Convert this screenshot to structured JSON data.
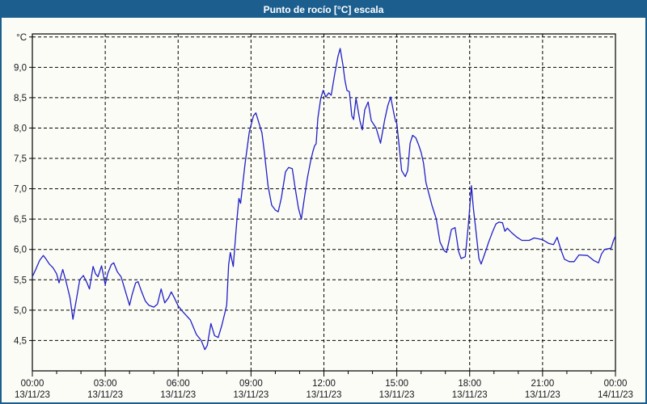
{
  "window": {
    "title": "Punto de rocío [°C] escala"
  },
  "colors": {
    "titlebar": "#1c5f8f",
    "border": "#1c5f8f",
    "background": "#fcfcf6",
    "grid": "#000000",
    "frame": "#000000",
    "line": "#2020c8",
    "tick_label": "#16161e"
  },
  "chart_data": {
    "type": "line",
    "title": "Punto de rocío [°C] escala",
    "grid": "dashed",
    "legend_position": "none",
    "y_axis": {
      "unit_label": "°C",
      "min": 4.0,
      "max": 9.55,
      "tick_step": 0.5,
      "ticks": [
        {
          "value": 4.5,
          "label": "4,5"
        },
        {
          "value": 5.0,
          "label": "5,0"
        },
        {
          "value": 5.5,
          "label": "5,5"
        },
        {
          "value": 6.0,
          "label": "6,0"
        },
        {
          "value": 6.5,
          "label": "6,5"
        },
        {
          "value": 7.0,
          "label": "7,0"
        },
        {
          "value": 7.5,
          "label": "7,5"
        },
        {
          "value": 8.0,
          "label": "8,0"
        },
        {
          "value": 8.5,
          "label": "8,5"
        },
        {
          "value": 9.0,
          "label": "9,0"
        },
        {
          "value": 9.5,
          "label": "°C"
        }
      ]
    },
    "x_axis": {
      "min_hours": 0,
      "max_hours": 24,
      "minor_tick_hours": 1,
      "major_tick_hours": 3,
      "major_labels": [
        {
          "hour": 0,
          "time": "00:00",
          "date": "13/11/23"
        },
        {
          "hour": 3,
          "time": "03:00",
          "date": "13/11/23"
        },
        {
          "hour": 6,
          "time": "06:00",
          "date": "13/11/23"
        },
        {
          "hour": 9,
          "time": "09:00",
          "date": "13/11/23"
        },
        {
          "hour": 12,
          "time": "12:00",
          "date": "13/11/23"
        },
        {
          "hour": 15,
          "time": "15:00",
          "date": "13/11/23"
        },
        {
          "hour": 18,
          "time": "18:00",
          "date": "13/11/23"
        },
        {
          "hour": 21,
          "time": "21:00",
          "date": "13/11/23"
        },
        {
          "hour": 24,
          "time": "00:00",
          "date": "14/11/23"
        }
      ]
    },
    "series": [
      {
        "name": "Punto de rocío",
        "color": "#2020c8",
        "points": [
          [
            0.0,
            5.55
          ],
          [
            0.15,
            5.68
          ],
          [
            0.3,
            5.82
          ],
          [
            0.45,
            5.9
          ],
          [
            0.55,
            5.85
          ],
          [
            0.7,
            5.76
          ],
          [
            0.85,
            5.7
          ],
          [
            1.0,
            5.6
          ],
          [
            1.1,
            5.45
          ],
          [
            1.25,
            5.67
          ],
          [
            1.4,
            5.45
          ],
          [
            1.55,
            5.2
          ],
          [
            1.67,
            4.85
          ],
          [
            1.8,
            5.15
          ],
          [
            1.95,
            5.5
          ],
          [
            2.1,
            5.57
          ],
          [
            2.25,
            5.45
          ],
          [
            2.35,
            5.35
          ],
          [
            2.5,
            5.72
          ],
          [
            2.6,
            5.6
          ],
          [
            2.7,
            5.55
          ],
          [
            2.85,
            5.73
          ],
          [
            3.0,
            5.42
          ],
          [
            3.1,
            5.6
          ],
          [
            3.25,
            5.75
          ],
          [
            3.35,
            5.78
          ],
          [
            3.5,
            5.63
          ],
          [
            3.65,
            5.55
          ],
          [
            3.8,
            5.35
          ],
          [
            4.0,
            5.08
          ],
          [
            4.1,
            5.25
          ],
          [
            4.25,
            5.45
          ],
          [
            4.35,
            5.47
          ],
          [
            4.5,
            5.3
          ],
          [
            4.65,
            5.15
          ],
          [
            4.8,
            5.08
          ],
          [
            5.0,
            5.05
          ],
          [
            5.15,
            5.1
          ],
          [
            5.3,
            5.35
          ],
          [
            5.45,
            5.12
          ],
          [
            5.6,
            5.2
          ],
          [
            5.72,
            5.3
          ],
          [
            5.85,
            5.2
          ],
          [
            6.0,
            5.07
          ],
          [
            6.2,
            4.97
          ],
          [
            6.5,
            4.84
          ],
          [
            6.75,
            4.6
          ],
          [
            6.95,
            4.5
          ],
          [
            7.1,
            4.35
          ],
          [
            7.2,
            4.42
          ],
          [
            7.35,
            4.78
          ],
          [
            7.5,
            4.58
          ],
          [
            7.65,
            4.55
          ],
          [
            7.8,
            4.75
          ],
          [
            8.0,
            5.08
          ],
          [
            8.08,
            5.75
          ],
          [
            8.15,
            5.95
          ],
          [
            8.27,
            5.72
          ],
          [
            8.42,
            6.5
          ],
          [
            8.5,
            6.84
          ],
          [
            8.57,
            6.76
          ],
          [
            8.75,
            7.4
          ],
          [
            8.93,
            7.94
          ],
          [
            9.1,
            8.2
          ],
          [
            9.2,
            8.25
          ],
          [
            9.35,
            8.05
          ],
          [
            9.45,
            7.92
          ],
          [
            9.55,
            7.6
          ],
          [
            9.7,
            7.05
          ],
          [
            9.85,
            6.73
          ],
          [
            10.0,
            6.65
          ],
          [
            10.12,
            6.62
          ],
          [
            10.25,
            6.85
          ],
          [
            10.42,
            7.28
          ],
          [
            10.55,
            7.35
          ],
          [
            10.7,
            7.33
          ],
          [
            10.82,
            7.0
          ],
          [
            10.95,
            6.68
          ],
          [
            11.07,
            6.5
          ],
          [
            11.2,
            6.86
          ],
          [
            11.32,
            7.18
          ],
          [
            11.45,
            7.45
          ],
          [
            11.55,
            7.62
          ],
          [
            11.62,
            7.71
          ],
          [
            11.68,
            7.74
          ],
          [
            11.75,
            8.16
          ],
          [
            11.87,
            8.49
          ],
          [
            11.97,
            8.62
          ],
          [
            12.08,
            8.51
          ],
          [
            12.2,
            8.58
          ],
          [
            12.3,
            8.54
          ],
          [
            12.45,
            8.9
          ],
          [
            12.58,
            9.18
          ],
          [
            12.67,
            9.31
          ],
          [
            12.78,
            9.05
          ],
          [
            12.87,
            8.78
          ],
          [
            12.95,
            8.62
          ],
          [
            13.05,
            8.6
          ],
          [
            13.15,
            8.2
          ],
          [
            13.22,
            8.14
          ],
          [
            13.32,
            8.49
          ],
          [
            13.48,
            8.12
          ],
          [
            13.58,
            7.97
          ],
          [
            13.68,
            8.3
          ],
          [
            13.82,
            8.43
          ],
          [
            13.95,
            8.12
          ],
          [
            14.15,
            8.0
          ],
          [
            14.33,
            7.75
          ],
          [
            14.5,
            8.13
          ],
          [
            14.63,
            8.37
          ],
          [
            14.75,
            8.51
          ],
          [
            14.88,
            8.24
          ],
          [
            14.95,
            8.11
          ],
          [
            15.0,
            8.08
          ],
          [
            15.1,
            7.7
          ],
          [
            15.2,
            7.3
          ],
          [
            15.35,
            7.2
          ],
          [
            15.45,
            7.3
          ],
          [
            15.55,
            7.75
          ],
          [
            15.65,
            7.88
          ],
          [
            15.78,
            7.84
          ],
          [
            15.9,
            7.72
          ],
          [
            16.0,
            7.6
          ],
          [
            16.1,
            7.42
          ],
          [
            16.2,
            7.1
          ],
          [
            16.45,
            6.72
          ],
          [
            16.62,
            6.51
          ],
          [
            16.78,
            6.12
          ],
          [
            16.95,
            5.98
          ],
          [
            17.05,
            5.95
          ],
          [
            17.25,
            6.33
          ],
          [
            17.4,
            6.36
          ],
          [
            17.55,
            5.96
          ],
          [
            17.65,
            5.85
          ],
          [
            17.82,
            5.88
          ],
          [
            17.95,
            6.42
          ],
          [
            18.07,
            7.05
          ],
          [
            18.15,
            6.68
          ],
          [
            18.25,
            6.33
          ],
          [
            18.38,
            5.85
          ],
          [
            18.47,
            5.76
          ],
          [
            18.62,
            5.93
          ],
          [
            18.78,
            6.12
          ],
          [
            18.95,
            6.3
          ],
          [
            19.08,
            6.42
          ],
          [
            19.2,
            6.45
          ],
          [
            19.35,
            6.44
          ],
          [
            19.45,
            6.3
          ],
          [
            19.55,
            6.35
          ],
          [
            19.72,
            6.28
          ],
          [
            19.95,
            6.2
          ],
          [
            20.15,
            6.15
          ],
          [
            20.45,
            6.15
          ],
          [
            20.65,
            6.19
          ],
          [
            20.9,
            6.17
          ],
          [
            21.0,
            6.16
          ],
          [
            21.25,
            6.1
          ],
          [
            21.45,
            6.08
          ],
          [
            21.6,
            6.2
          ],
          [
            21.75,
            6.0
          ],
          [
            21.9,
            5.84
          ],
          [
            22.1,
            5.8
          ],
          [
            22.3,
            5.8
          ],
          [
            22.5,
            5.91
          ],
          [
            22.85,
            5.9
          ],
          [
            23.1,
            5.82
          ],
          [
            23.3,
            5.78
          ],
          [
            23.42,
            5.92
          ],
          [
            23.55,
            6.0
          ],
          [
            23.82,
            6.02
          ],
          [
            23.92,
            6.15
          ],
          [
            24.0,
            6.22
          ]
        ]
      }
    ]
  }
}
